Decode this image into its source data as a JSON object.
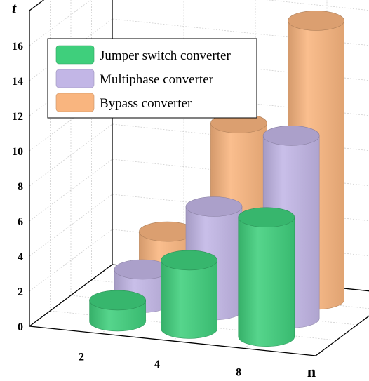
{
  "chart_data": {
    "type": "bar",
    "style": "3d-cylinder",
    "categories": [
      "2",
      "4",
      "8"
    ],
    "series": [
      {
        "name": "Jumper switch converter",
        "values": [
          1.2,
          3.9,
          6.8
        ],
        "color": "#3fcf7c"
      },
      {
        "name": "Multiphase converter",
        "values": [
          1.9,
          5.9,
          10.4
        ],
        "color": "#c2b6e6"
      },
      {
        "name": "Bypass converter",
        "values": [
          3.0,
          9.6,
          15.9
        ],
        "color": "#f9b57f"
      }
    ],
    "yticks": [
      "0",
      "2",
      "4",
      "6",
      "8",
      "10",
      "12",
      "14",
      "16"
    ],
    "ylim": [
      0,
      16
    ],
    "xlabel": "n",
    "ylabel": "t",
    "grid": true,
    "legend_position": "top-left"
  }
}
